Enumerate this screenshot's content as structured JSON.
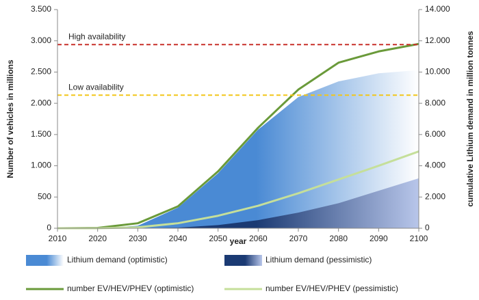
{
  "chart_data": {
    "type": "line",
    "x_label": "year",
    "y_label": "Number of vehicles in millions",
    "y2_label": "cumulative Lithium demand in million tonnes",
    "x": [
      2010,
      2020,
      2030,
      2040,
      2050,
      2060,
      2070,
      2080,
      2090,
      2100
    ],
    "xlim": [
      2010,
      2100
    ],
    "xticks": [
      2010,
      2020,
      2030,
      2040,
      2050,
      2060,
      2070,
      2080,
      2090,
      2100
    ],
    "ylim": [
      0,
      3500
    ],
    "yticks": [
      0,
      500,
      {
        "value": 1000,
        "label": "1.000"
      },
      {
        "value": 1500,
        "label": "1.500"
      },
      {
        "value": 2000,
        "label": "2.000"
      },
      {
        "value": 2500,
        "label": "2.500"
      },
      {
        "value": 3000,
        "label": "3.000"
      },
      {
        "value": 3500,
        "label": "3.500"
      }
    ],
    "y2lim": [
      0,
      14000
    ],
    "y2ticks": [
      0,
      {
        "value": 2000,
        "label": "2.000"
      },
      {
        "value": 4000,
        "label": "4.000"
      },
      {
        "value": 6000,
        "label": "6.000"
      },
      {
        "value": 8000,
        "label": "8.000"
      },
      {
        "value": 10000,
        "label": "10.000"
      },
      {
        "value": 12000,
        "label": "12.000"
      },
      {
        "value": 14000,
        "label": "14.000"
      }
    ],
    "series": [
      {
        "name": "Lithium demand (optimistic)",
        "kind": "area",
        "axis": "y2",
        "color": "#4a8ad4",
        "values": [
          0,
          0,
          160,
          1320,
          3520,
          6320,
          8400,
          9400,
          9920,
          10120
        ]
      },
      {
        "name": "Lithium demand (pessimistic)",
        "kind": "area",
        "axis": "y2",
        "color": "#1b3a73",
        "values": [
          0,
          0,
          0,
          40,
          200,
          520,
          1000,
          1600,
          2400,
          3200
        ]
      },
      {
        "name": "number EV/HEV/PHEV (optimistic)",
        "kind": "line",
        "axis": "y",
        "color": "#6a9a3a",
        "values": [
          0,
          5,
          80,
          350,
          910,
          1610,
          2220,
          2650,
          2830,
          2950
        ]
      },
      {
        "name": "number EV/HEV/PHEV (pessimistic)",
        "kind": "line",
        "axis": "y",
        "color": "#c5df9a",
        "values": [
          0,
          0,
          15,
          80,
          200,
          360,
          560,
          780,
          1000,
          1230
        ]
      }
    ],
    "reference_lines": [
      {
        "label": "High availability",
        "value": 11760,
        "axis": "y2",
        "color": "#c8302a"
      },
      {
        "label": "Low availability",
        "value": 8520,
        "axis": "y2",
        "color": "#f2c619"
      }
    ]
  }
}
